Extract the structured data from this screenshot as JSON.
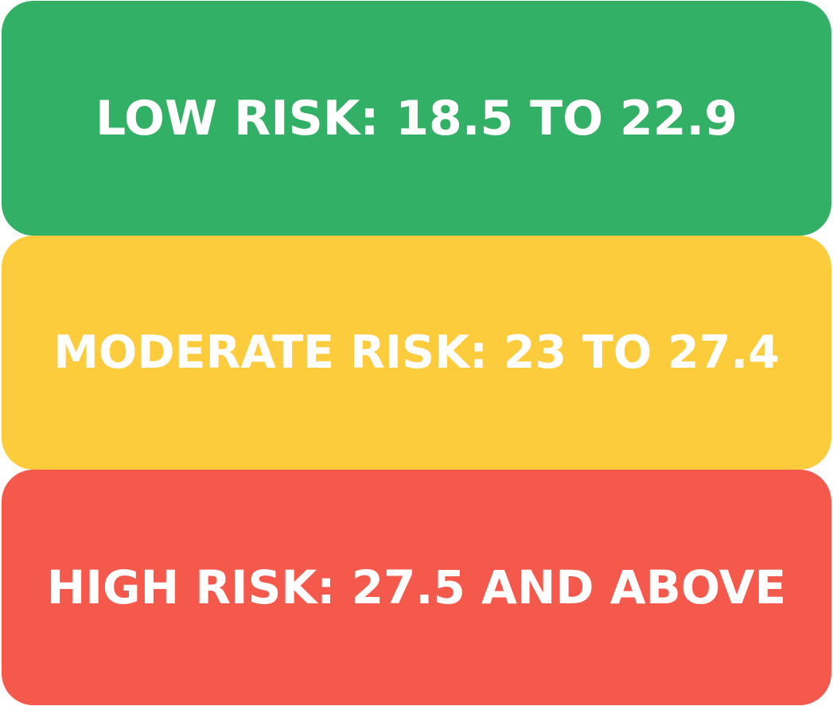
{
  "risk_levels": [
    {
      "label": "LOW RISK: 18.5 TO 22.9",
      "color": "#32b066"
    },
    {
      "label": "MODERATE RISK: 23 TO 27.4",
      "color": "#fdcc3c"
    },
    {
      "label": "HIGH RISK: 27.5 AND ABOVE",
      "color": "#f4594c"
    }
  ]
}
